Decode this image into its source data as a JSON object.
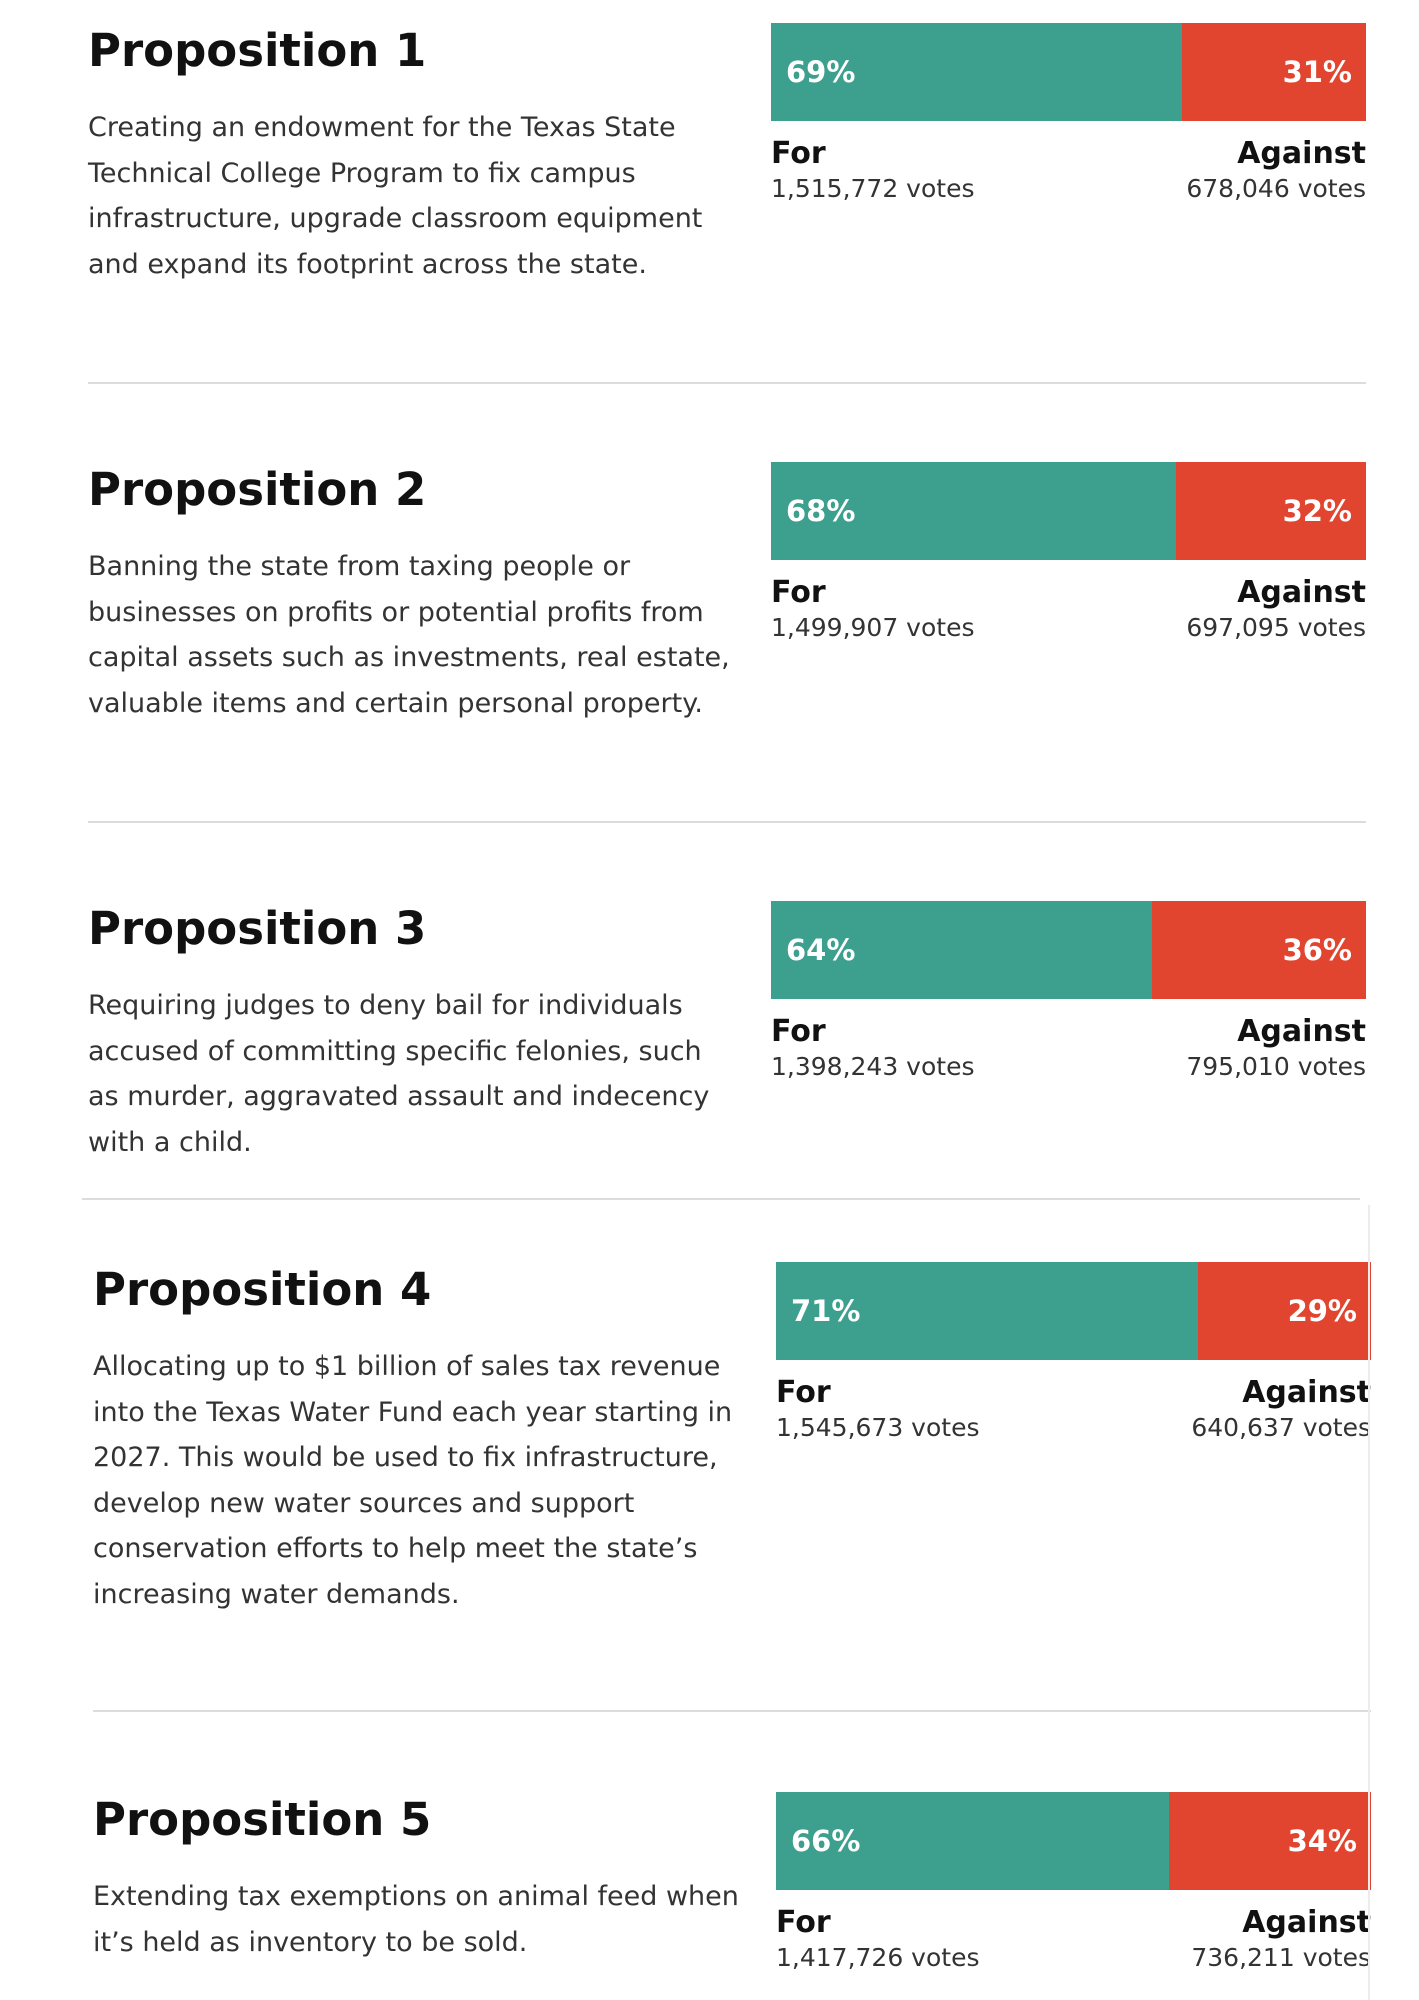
{
  "labels": {
    "for": "For",
    "against": "Against"
  },
  "chart_data": {
    "type": "bar",
    "stacked": true,
    "orientation": "horizontal",
    "colors": {
      "for": "#3d9f8d",
      "against": "#e2452f"
    },
    "propositions": [
      {
        "title": "Proposition 1",
        "description": "Creating an endowment for the Texas State Technical College Program to fix campus infrastructure, upgrade classroom equipment and expand its footprint across the state.",
        "for_pct": 69,
        "against_pct": 31,
        "for_pct_label": "69%",
        "against_pct_label": "31%",
        "for_votes": "1,515,772 votes",
        "against_votes": "678,046 votes"
      },
      {
        "title": "Proposition 2",
        "description": "Banning the state from taxing people or businesses on profits or potential profits from capital assets such as investments, real estate, valuable items and certain personal property.",
        "for_pct": 68,
        "against_pct": 32,
        "for_pct_label": "68%",
        "against_pct_label": "32%",
        "for_votes": "1,499,907 votes",
        "against_votes": "697,095 votes"
      },
      {
        "title": "Proposition 3",
        "description": "Requiring judges to deny bail for individuals accused of committing specific felonies, such as murder, aggravated assault and indecency with a child.",
        "for_pct": 64,
        "against_pct": 36,
        "for_pct_label": "64%",
        "against_pct_label": "36%",
        "for_votes": "1,398,243 votes",
        "against_votes": "795,010 votes"
      },
      {
        "title": "Proposition 4",
        "description": "Allocating up to $1 billion of sales tax revenue into the Texas Water Fund each year starting in 2027. This would be used to fix infrastructure, develop new water sources and support conservation efforts to help meet the state’s increasing water demands.",
        "for_pct": 71,
        "against_pct": 29,
        "for_pct_label": "71%",
        "against_pct_label": "29%",
        "for_votes": "1,545,673 votes",
        "against_votes": "640,637 votes"
      },
      {
        "title": "Proposition 5",
        "description": "Extending tax exemptions on animal feed when it’s held as inventory to be sold.",
        "for_pct": 66,
        "against_pct": 34,
        "for_pct_label": "66%",
        "against_pct_label": "34%",
        "for_votes": "1,417,726 votes",
        "against_votes": "736,211 votes"
      }
    ]
  }
}
